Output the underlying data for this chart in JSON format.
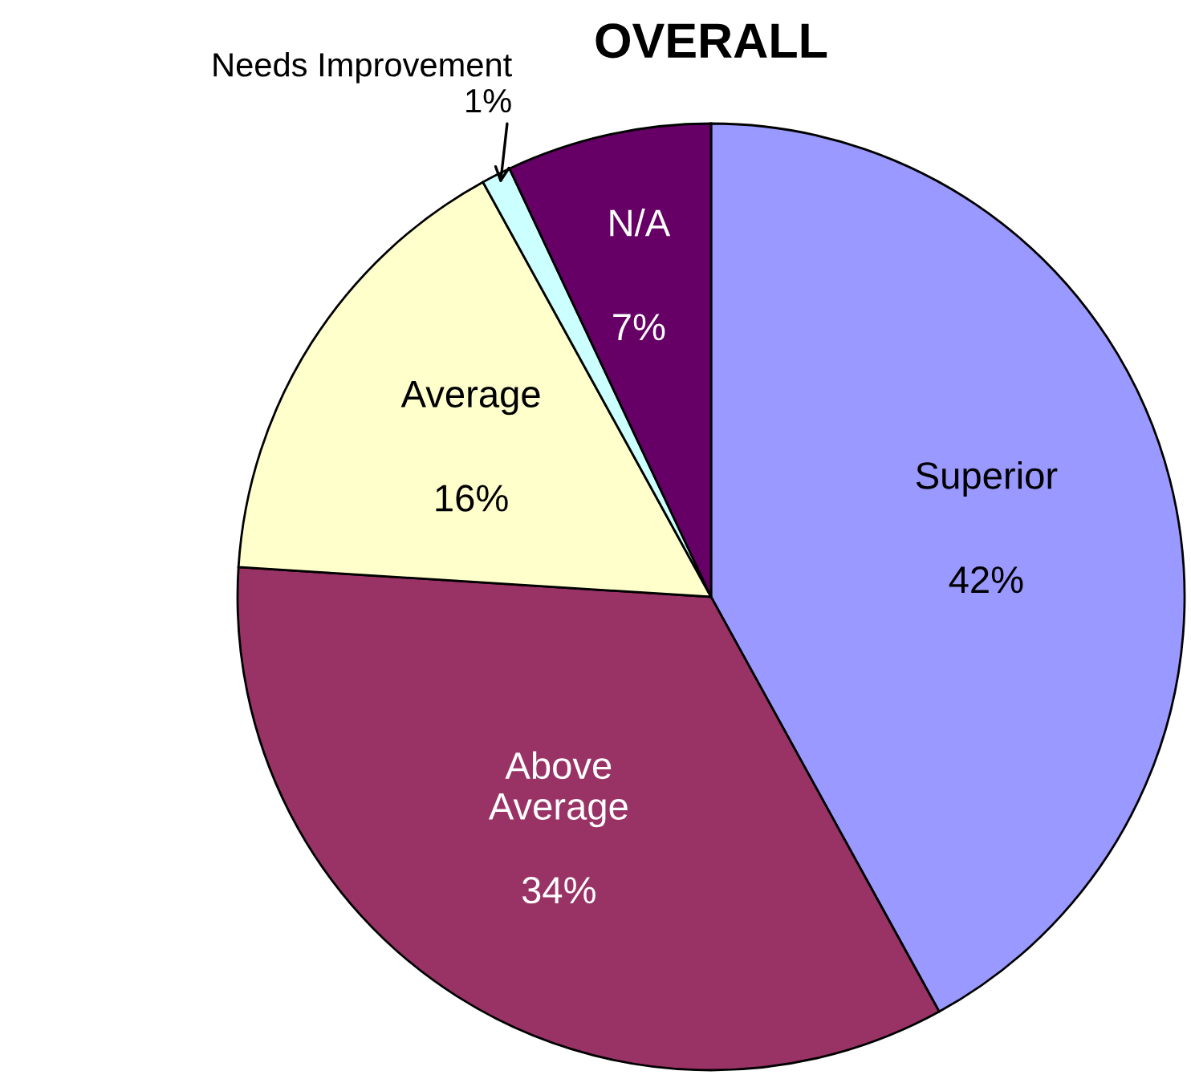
{
  "chart_data": {
    "type": "pie",
    "title": "OVERALL",
    "categories": [
      "Superior",
      "Above\nAverage",
      "Average",
      "Needs Improvement",
      "N/A"
    ],
    "values": [
      42,
      34,
      16,
      1,
      7
    ],
    "value_labels": [
      "42%",
      "34%",
      "16%",
      "1%",
      "7%"
    ],
    "colors": [
      "#9999ff",
      "#993366",
      "#ffffcc",
      "#ccffff",
      "#660066"
    ],
    "legend": false
  }
}
